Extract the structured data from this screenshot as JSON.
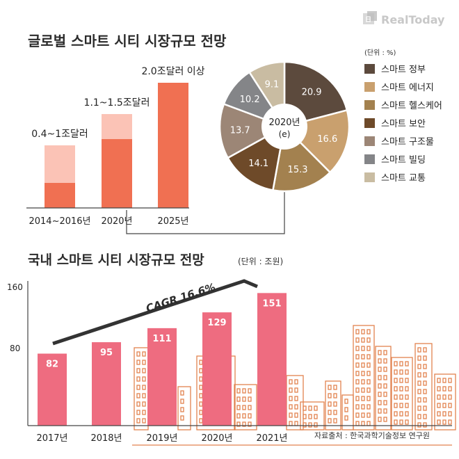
{
  "brand": {
    "name": "RealToday"
  },
  "global_chart": {
    "title": "글로벌 스마트 시티 시장규모 전망",
    "bars": [
      {
        "category": "2014~2016년",
        "label": "0.4~1조달러",
        "low": 0.4,
        "high": 1.0
      },
      {
        "category": "2020년",
        "label": "1.1~1.5조달러",
        "low": 1.1,
        "high": 1.5
      },
      {
        "category": "2025년",
        "label": "2.0조달러 이상",
        "low": 2.0,
        "high": 2.0
      }
    ],
    "colors": {
      "low": "#f07052",
      "range": "#fbc3b6"
    }
  },
  "pie_chart": {
    "center_label_line1": "2020년",
    "center_label_line2": "(e)",
    "unit": "(단위 : %)",
    "slices": [
      {
        "name": "스마트 정부",
        "value": 20.9,
        "color": "#5c4a3d"
      },
      {
        "name": "스마트 에너지",
        "value": 16.6,
        "color": "#c9a06e"
      },
      {
        "name": "스마트 헬스케어",
        "value": 15.3,
        "color": "#a3814f"
      },
      {
        "name": "스마트 보안",
        "value": 14.1,
        "color": "#6e4a29"
      },
      {
        "name": "스마트 구조물",
        "value": 13.7,
        "color": "#9c8676"
      },
      {
        "name": "스마트 빌딩",
        "value": 10.2,
        "color": "#848588"
      },
      {
        "name": "스마트 교통",
        "value": 9.1,
        "color": "#c9bca2"
      }
    ]
  },
  "domestic_chart": {
    "title": "국내 스마트 시티 시장규모 전망",
    "unit": "(단위 : 조원)",
    "cagr_label": "CAGR 16.6%",
    "yticks": [
      "160",
      "80"
    ],
    "bar_color": "#ee6c80",
    "source": "자료출처 : 한국과학기술정보 연구원"
  },
  "chart_data": [
    {
      "type": "bar",
      "title": "글로벌 스마트 시티 시장규모 전망",
      "categories": [
        "2014~2016년",
        "2020년",
        "2025년"
      ],
      "series": [
        {
          "values": [
            0.4,
            1.1,
            2.0
          ]
        },
        {
          "values": [
            1.0,
            1.5,
            2.0
          ]
        }
      ],
      "data_labels": [
        "0.4~1조달러",
        "1.1~1.5조달러",
        "2.0조달러 이상"
      ]
    },
    {
      "type": "pie",
      "categories": [
        "스마트 정부",
        "스마트 에너지",
        "스마트 헬스케어",
        "스마트 보안",
        "스마트 구조물",
        "스마트 빌딩",
        "스마트 교통"
      ],
      "values": [
        20.9,
        16.6,
        15.3,
        14.1,
        13.7,
        10.2,
        9.1
      ],
      "legend": "right"
    },
    {
      "type": "bar",
      "title": "국내 스마트 시티 시장규모 전망",
      "categories": [
        "2017년",
        "2018년",
        "2019년",
        "2020년",
        "2021년"
      ],
      "values": [
        82,
        95,
        111,
        129,
        151
      ],
      "ylim": [
        0,
        160
      ],
      "yticks": [
        80,
        160
      ]
    }
  ]
}
